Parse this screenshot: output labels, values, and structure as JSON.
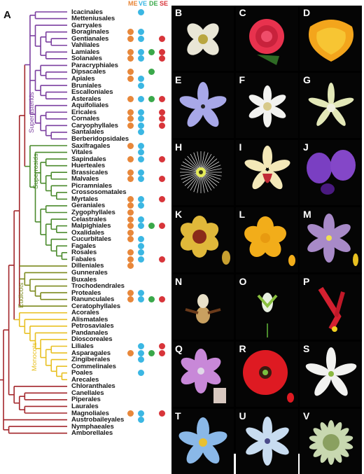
{
  "panel_a_label": "A",
  "columns": [
    {
      "label": "ME",
      "color": "#e8873a"
    },
    {
      "label": "VE",
      "color": "#3bb7e3"
    },
    {
      "label": "DE",
      "color": "#3aa84a"
    },
    {
      "label": "SE",
      "color": "#d8353a"
    }
  ],
  "clade_labels": {
    "superasterids": "Superasterids",
    "superrosids": "Superrosids",
    "eudicots": "Eudicots",
    "monocots": "Monocots"
  },
  "clade_colors": {
    "superasterids": "#7b3fa0",
    "superrosids": "#4a8a2c",
    "eudicots": "#7c8a1e",
    "monocots": "#e8c022",
    "basal": "#a3262b"
  },
  "orders": [
    {
      "name": "Icacinales",
      "clade": "superasterids",
      "marks": [
        0,
        1,
        0,
        0
      ]
    },
    {
      "name": "Metteniusales",
      "clade": "superasterids",
      "marks": [
        0,
        0,
        0,
        0
      ]
    },
    {
      "name": "Garryales",
      "clade": "superasterids",
      "marks": [
        0,
        0,
        0,
        0
      ]
    },
    {
      "name": "Boraginales",
      "clade": "superasterids",
      "marks": [
        1,
        1,
        0,
        0
      ]
    },
    {
      "name": "Gentianales",
      "clade": "superasterids",
      "marks": [
        1,
        1,
        0,
        1
      ]
    },
    {
      "name": "Vahliales",
      "clade": "superasterids",
      "marks": [
        0,
        0,
        0,
        0
      ]
    },
    {
      "name": "Lamiales",
      "clade": "superasterids",
      "marks": [
        1,
        1,
        1,
        1
      ]
    },
    {
      "name": "Solanales",
      "clade": "superasterids",
      "marks": [
        1,
        1,
        0,
        1
      ]
    },
    {
      "name": "Paracryphiales",
      "clade": "superasterids",
      "marks": [
        0,
        0,
        0,
        0
      ]
    },
    {
      "name": "Dipsacales",
      "clade": "superasterids",
      "marks": [
        1,
        0,
        1,
        0
      ]
    },
    {
      "name": "Apiales",
      "clade": "superasterids",
      "marks": [
        1,
        1,
        0,
        0
      ]
    },
    {
      "name": "Bruniales",
      "clade": "superasterids",
      "marks": [
        0,
        1,
        0,
        0
      ]
    },
    {
      "name": "Escalloniales",
      "clade": "superasterids",
      "marks": [
        0,
        0,
        0,
        0
      ]
    },
    {
      "name": "Asterales",
      "clade": "superasterids",
      "marks": [
        1,
        1,
        1,
        1
      ]
    },
    {
      "name": "Aquifoliales",
      "clade": "superasterids",
      "marks": [
        0,
        0,
        0,
        0
      ]
    },
    {
      "name": "Ericales",
      "clade": "superasterids",
      "marks": [
        1,
        1,
        0,
        1
      ]
    },
    {
      "name": "Cornales",
      "clade": "superasterids",
      "marks": [
        1,
        1,
        0,
        1
      ]
    },
    {
      "name": "Caryophyllales",
      "clade": "superasterids",
      "marks": [
        1,
        1,
        0,
        1
      ]
    },
    {
      "name": "Santalales",
      "clade": "superasterids",
      "marks": [
        0,
        1,
        0,
        0
      ]
    },
    {
      "name": "Berberidopsidales",
      "clade": "superasterids",
      "marks": [
        0,
        0,
        0,
        0
      ]
    },
    {
      "name": "Saxifragales",
      "clade": "superrosids",
      "marks": [
        1,
        1,
        0,
        0
      ]
    },
    {
      "name": "Vitales",
      "clade": "superrosids",
      "marks": [
        0,
        1,
        0,
        0
      ]
    },
    {
      "name": "Sapindales",
      "clade": "superrosids",
      "marks": [
        1,
        1,
        0,
        1
      ]
    },
    {
      "name": "Huerteales",
      "clade": "superrosids",
      "marks": [
        0,
        0,
        0,
        0
      ]
    },
    {
      "name": "Brassicales",
      "clade": "superrosids",
      "marks": [
        1,
        1,
        0,
        0
      ]
    },
    {
      "name": "Malvales",
      "clade": "superrosids",
      "marks": [
        1,
        1,
        0,
        1
      ]
    },
    {
      "name": "Picramniales",
      "clade": "superrosids",
      "marks": [
        0,
        0,
        0,
        0
      ]
    },
    {
      "name": "Crossosomatales",
      "clade": "superrosids",
      "marks": [
        0,
        0,
        0,
        0
      ]
    },
    {
      "name": "Myrtales",
      "clade": "superrosids",
      "marks": [
        1,
        1,
        0,
        1
      ]
    },
    {
      "name": "Geraniales",
      "clade": "superrosids",
      "marks": [
        1,
        1,
        0,
        0
      ]
    },
    {
      "name": "Zygophyllales",
      "clade": "superrosids",
      "marks": [
        1,
        0,
        0,
        0
      ]
    },
    {
      "name": "Celastrales",
      "clade": "superrosids",
      "marks": [
        1,
        1,
        0,
        0
      ]
    },
    {
      "name": "Malpighiales",
      "clade": "superrosids",
      "marks": [
        1,
        1,
        1,
        1
      ]
    },
    {
      "name": "Oxalidales",
      "clade": "superrosids",
      "marks": [
        1,
        0,
        0,
        0
      ]
    },
    {
      "name": "Cucurbitales",
      "clade": "superrosids",
      "marks": [
        1,
        1,
        0,
        0
      ]
    },
    {
      "name": "Fagales",
      "clade": "superrosids",
      "marks": [
        0,
        1,
        0,
        0
      ]
    },
    {
      "name": "Rosales",
      "clade": "superrosids",
      "marks": [
        1,
        1,
        0,
        0
      ]
    },
    {
      "name": "Fabales",
      "clade": "superrosids",
      "marks": [
        1,
        1,
        0,
        1
      ]
    },
    {
      "name": "Dilleniales",
      "clade": "eudicots",
      "marks": [
        1,
        0,
        0,
        0
      ]
    },
    {
      "name": "Gunnerales",
      "clade": "eudicots",
      "marks": [
        0,
        0,
        0,
        0
      ]
    },
    {
      "name": "Buxales",
      "clade": "eudicots",
      "marks": [
        0,
        0,
        0,
        0
      ]
    },
    {
      "name": "Trochodendrales",
      "clade": "eudicots",
      "marks": [
        0,
        0,
        0,
        0
      ]
    },
    {
      "name": "Proteales",
      "clade": "eudicots",
      "marks": [
        1,
        1,
        0,
        0
      ]
    },
    {
      "name": "Ranunculales",
      "clade": "eudicots",
      "marks": [
        1,
        1,
        1,
        1
      ]
    },
    {
      "name": "Ceratophyllales",
      "clade": "eudicots",
      "marks": [
        0,
        0,
        0,
        0
      ]
    },
    {
      "name": "Acorales",
      "clade": "monocots",
      "marks": [
        0,
        0,
        0,
        0
      ]
    },
    {
      "name": "Alismatales",
      "clade": "monocots",
      "marks": [
        0,
        0,
        0,
        0
      ]
    },
    {
      "name": "Petrosaviales",
      "clade": "monocots",
      "marks": [
        0,
        0,
        0,
        0
      ]
    },
    {
      "name": "Pandanales",
      "clade": "monocots",
      "marks": [
        0,
        0,
        0,
        0
      ]
    },
    {
      "name": "Dioscoreales",
      "clade": "monocots",
      "marks": [
        0,
        0,
        0,
        0
      ]
    },
    {
      "name": "Liliales",
      "clade": "monocots",
      "marks": [
        0,
        1,
        0,
        1
      ]
    },
    {
      "name": "Asparagales",
      "clade": "monocots",
      "marks": [
        1,
        1,
        1,
        1
      ]
    },
    {
      "name": "Zingiberales",
      "clade": "monocots",
      "marks": [
        0,
        1,
        0,
        0
      ]
    },
    {
      "name": "Commelinales",
      "clade": "monocots",
      "marks": [
        0,
        0,
        0,
        0
      ]
    },
    {
      "name": "Poales",
      "clade": "monocots",
      "marks": [
        0,
        1,
        0,
        0
      ]
    },
    {
      "name": "Arecales",
      "clade": "monocots",
      "marks": [
        0,
        0,
        0,
        0
      ]
    },
    {
      "name": "Chloranthales",
      "clade": "basal",
      "marks": [
        0,
        0,
        0,
        0
      ]
    },
    {
      "name": "Canellales",
      "clade": "basal",
      "marks": [
        0,
        0,
        0,
        0
      ]
    },
    {
      "name": "Piperales",
      "clade": "basal",
      "marks": [
        0,
        0,
        0,
        0
      ]
    },
    {
      "name": "Laurales",
      "clade": "basal",
      "marks": [
        0,
        0,
        0,
        0
      ]
    },
    {
      "name": "Magnoliales",
      "clade": "basal",
      "marks": [
        1,
        1,
        0,
        1
      ]
    },
    {
      "name": "Austrobaileyales",
      "clade": "basal",
      "marks": [
        0,
        1,
        0,
        0
      ]
    },
    {
      "name": "Nymphaeales",
      "clade": "basal",
      "marks": [
        0,
        0,
        0,
        0
      ]
    },
    {
      "name": "Amborellales",
      "clade": "basal",
      "marks": [
        0,
        0,
        0,
        0
      ]
    }
  ],
  "photo_panels": [
    {
      "label": "B",
      "subject": "white-four-petal-flower"
    },
    {
      "label": "C",
      "subject": "pink-rose"
    },
    {
      "label": "D",
      "subject": "orange-poppy"
    },
    {
      "label": "E",
      "subject": "lilac-star-flower"
    },
    {
      "label": "F",
      "subject": "white-star-flower"
    },
    {
      "label": "G",
      "subject": "pale-orchid-like-flower"
    },
    {
      "label": "H",
      "subject": "fringed-white-flower"
    },
    {
      "label": "I",
      "subject": "yellow-orchid"
    },
    {
      "label": "J",
      "subject": "purple-pea-flower"
    },
    {
      "label": "K",
      "subject": "yellow-red-cup-flower"
    },
    {
      "label": "L",
      "subject": "yellow-buttercup"
    },
    {
      "label": "M",
      "subject": "purple-lily-flower"
    },
    {
      "label": "N",
      "subject": "slipper-orchid"
    },
    {
      "label": "O",
      "subject": "green-orchid"
    },
    {
      "label": "P",
      "subject": "red-columbine"
    },
    {
      "label": "Q",
      "subject": "pink-lily"
    },
    {
      "label": "R",
      "subject": "red-poppy"
    },
    {
      "label": "S",
      "subject": "white-spotted-star-flower"
    },
    {
      "label": "T",
      "subject": "blue-fringed-star-flower"
    },
    {
      "label": "U",
      "subject": "pale-blue-orchid"
    },
    {
      "label": "V",
      "subject": "green-protea-like-flower"
    }
  ]
}
